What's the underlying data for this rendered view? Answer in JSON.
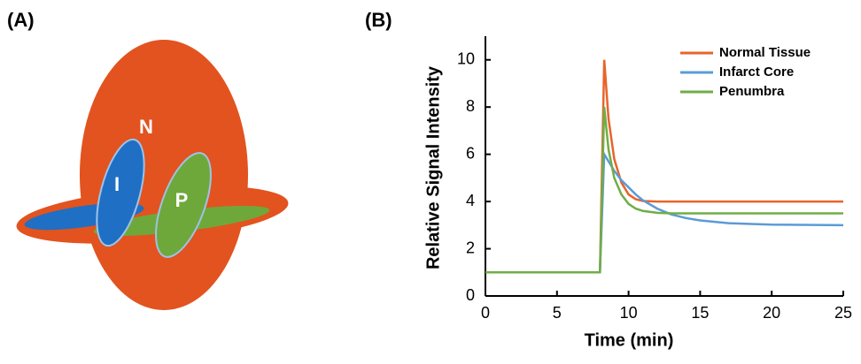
{
  "panel_labels": [
    "(A)",
    "(B)"
  ],
  "diagram": {
    "labels": [
      "N",
      "I",
      "P"
    ]
  },
  "chart_data": {
    "type": "line",
    "xlabel": "Time (min)",
    "ylabel": "Relative Signal Intensity",
    "x": [
      0,
      8,
      8.3,
      8.6,
      9,
      9.5,
      10,
      10.5,
      11,
      12,
      13,
      14,
      15,
      17,
      20,
      25
    ],
    "series": [
      {
        "name": "Normal Tissue",
        "color": "#e8642a",
        "values": [
          1,
          1,
          10,
          7.5,
          5.8,
          4.8,
          4.3,
          4.1,
          4.02,
          4,
          4,
          4,
          4,
          4,
          4,
          4
        ]
      },
      {
        "name": "Infarct Core",
        "color": "#5b9bd5",
        "values": [
          1,
          1,
          6,
          5.7,
          5.3,
          4.9,
          4.6,
          4.3,
          4.05,
          3.7,
          3.45,
          3.3,
          3.2,
          3.08,
          3.02,
          3
        ]
      },
      {
        "name": "Penumbra",
        "color": "#70ad47",
        "values": [
          1,
          1,
          8,
          6.2,
          5,
          4.3,
          3.9,
          3.7,
          3.6,
          3.52,
          3.5,
          3.5,
          3.5,
          3.5,
          3.5,
          3.5
        ]
      }
    ],
    "xlim": [
      0,
      25
    ],
    "xticks": [
      0,
      5,
      10,
      15,
      20,
      25
    ],
    "ylim": [
      0,
      11
    ],
    "yticks": [
      0,
      2,
      4,
      6,
      8,
      10
    ],
    "legend": "upper right"
  }
}
